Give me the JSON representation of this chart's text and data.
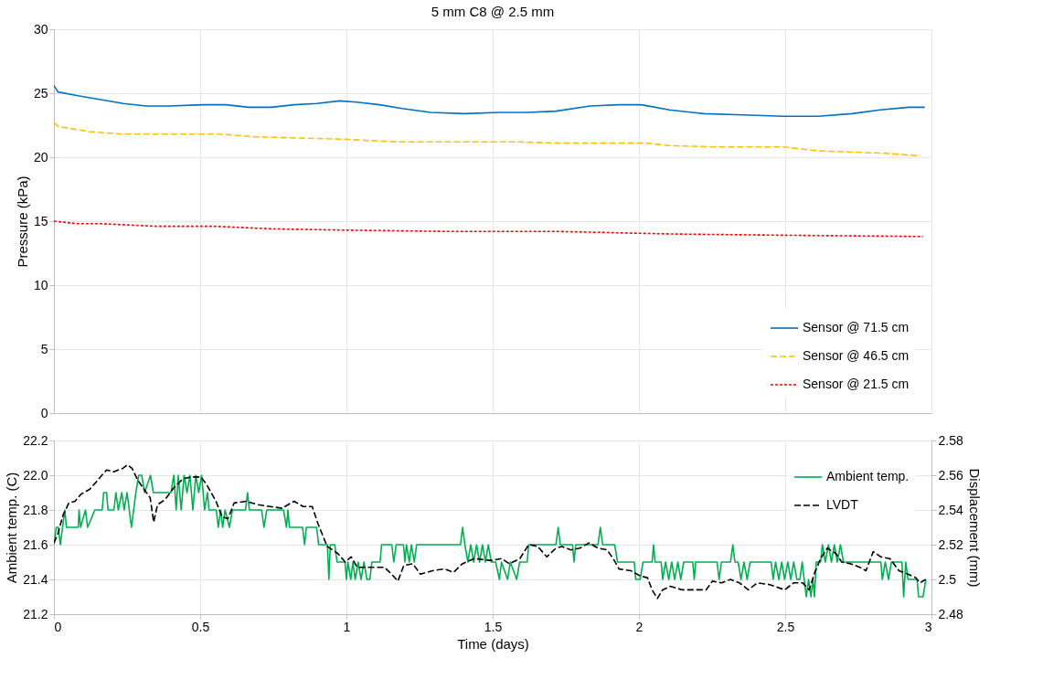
{
  "chart_data": [
    {
      "type": "line",
      "title": "5 mm C8 @ 2.5 mm",
      "ylabel": "Pressure (kPa)",
      "xlim": [
        0,
        3
      ],
      "xticks": [
        0,
        0.5,
        1,
        1.5,
        2,
        2.5,
        3
      ],
      "ylim": [
        0,
        30
      ],
      "yticks": [
        0,
        5,
        10,
        15,
        20,
        25,
        30
      ],
      "grid": true,
      "legend": "bottom right",
      "tick_labels": "y",
      "series": [
        {
          "name": "Sensor @ 71.5 cm",
          "color": "#0070c0",
          "line_style": "solid",
          "x": [
            0,
            0.014,
            0.082,
            0.16,
            0.237,
            0.315,
            0.393,
            0.51,
            0.588,
            0.665,
            0.743,
            0.821,
            0.899,
            0.977,
            1.035,
            1.113,
            1.191,
            1.288,
            1.405,
            1.521,
            1.619,
            1.716,
            1.833,
            1.93,
            2.008,
            2.105,
            2.222,
            2.358,
            2.494,
            2.611,
            2.728,
            2.825,
            2.922,
            2.977
          ],
          "values": [
            25.6,
            25.1,
            24.8,
            24.5,
            24.2,
            24.0,
            24.0,
            24.1,
            24.1,
            23.9,
            23.9,
            24.1,
            24.2,
            24.4,
            24.3,
            24.1,
            23.8,
            23.5,
            23.4,
            23.5,
            23.5,
            23.6,
            24.0,
            24.1,
            24.1,
            23.7,
            23.4,
            23.3,
            23.2,
            23.2,
            23.4,
            23.7,
            23.9,
            23.9
          ]
        },
        {
          "name": "Sensor @ 46.5 cm",
          "color": "#ffc000",
          "line_style": "dashed",
          "x": [
            0,
            0.014,
            0.121,
            0.237,
            0.393,
            0.568,
            0.685,
            0.84,
            0.996,
            1.171,
            1.424,
            1.58,
            1.716,
            2.027,
            2.105,
            2.261,
            2.494,
            2.611,
            2.844,
            2.961
          ],
          "values": [
            22.7,
            22.4,
            22.0,
            21.8,
            21.8,
            21.8,
            21.6,
            21.5,
            21.4,
            21.2,
            21.2,
            21.2,
            21.1,
            21.1,
            20.9,
            20.8,
            20.8,
            20.5,
            20.3,
            20.1
          ]
        },
        {
          "name": "Sensor @ 21.5 cm",
          "color": "#ff0000",
          "line_style": "dotted",
          "x": [
            0,
            0.082,
            0.16,
            0.354,
            0.549,
            0.743,
            0.996,
            1.327,
            1.716,
            2.105,
            2.494,
            2.971
          ],
          "values": [
            15.0,
            14.8,
            14.8,
            14.6,
            14.6,
            14.4,
            14.3,
            14.2,
            14.2,
            14.0,
            13.9,
            13.8
          ]
        }
      ]
    },
    {
      "type": "line",
      "xlabel": "Time (days)",
      "ylabel": "Ambient temp. (C)",
      "y2label": "Displacement (mm)",
      "xlim": [
        0,
        3
      ],
      "xticks": [
        0,
        0.5,
        1,
        1.5,
        2,
        2.5,
        3
      ],
      "ylim": [
        21.2,
        22.2
      ],
      "yticks": [
        21.2,
        21.4,
        21.6,
        21.8,
        {
          "value": 22,
          "label": "22.0"
        },
        22.2
      ],
      "y2lim": [
        2.48,
        2.58
      ],
      "y2ticks": [
        2.48,
        {
          "value": 2.5,
          "label": "2.5"
        },
        2.52,
        2.54,
        2.56,
        2.58
      ],
      "grid": true,
      "legend": "top right",
      "series": [
        {
          "name": "Ambient temp.",
          "color": "#00b050",
          "line_style": "solid",
          "x": [
            0,
            0.008,
            0.015,
            0.022,
            0.037,
            0.043,
            0.083,
            0.086,
            0.091,
            0.108,
            0.115,
            0.14,
            0.165,
            0.17,
            0.18,
            0.185,
            0.205,
            0.212,
            0.22,
            0.232,
            0.24,
            0.25,
            0.265,
            0.28,
            0.29,
            0.3,
            0.31,
            0.33,
            0.34,
            0.4,
            0.41,
            0.418,
            0.425,
            0.435,
            0.445,
            0.455,
            0.465,
            0.475,
            0.485,
            0.495,
            0.505,
            0.515,
            0.525,
            0.53,
            0.555,
            0.562,
            0.57,
            0.577,
            0.585,
            0.6,
            0.61,
            0.655,
            0.662,
            0.668,
            0.71,
            0.718,
            0.728,
            0.785,
            0.795,
            0.8,
            0.805,
            0.85,
            0.857,
            0.863,
            0.898,
            0.905,
            0.935,
            0.94,
            0.945,
            0.96,
            0.968,
            0.995,
            1.0,
            1.005,
            1.015,
            1.022,
            1.03,
            1.04,
            1.05,
            1.06,
            1.07,
            1.08,
            1.087,
            1.115,
            1.12,
            1.155,
            1.162,
            1.17,
            1.195,
            1.2,
            1.205,
            1.215,
            1.222,
            1.232,
            1.24,
            1.39,
            1.397,
            1.405,
            1.415,
            1.425,
            1.435,
            1.445,
            1.455,
            1.465,
            1.475,
            1.485,
            1.495,
            1.51,
            1.523,
            1.53,
            1.551,
            1.56,
            1.582,
            1.592,
            1.618,
            1.623,
            1.716,
            1.724,
            1.731,
            1.773,
            1.778,
            1.784,
            1.86,
            1.868,
            1.876,
            1.917,
            1.927,
            1.984,
            1.989,
            2.004,
            2.014,
            2.045,
            2.05,
            2.055,
            2.076,
            2.081,
            2.091,
            2.102,
            2.112,
            2.122,
            2.133,
            2.143,
            2.153,
            2.184,
            2.189,
            2.194,
            2.267,
            2.274,
            2.282,
            2.313,
            2.321,
            2.328,
            2.339,
            2.349,
            2.359,
            2.37,
            2.38,
            2.452,
            2.459,
            2.467,
            2.478,
            2.488,
            2.498,
            2.509,
            2.519,
            2.529,
            2.54,
            2.55,
            2.558,
            2.572,
            2.58,
            2.588,
            2.595,
            2.6,
            2.606,
            2.621,
            2.627,
            2.637,
            2.648,
            2.658,
            2.668,
            2.678,
            2.689,
            2.699,
            2.827,
            2.832,
            2.842,
            2.853,
            2.863,
            2.899,
            2.905,
            2.912,
            2.92,
            2.951,
            2.956,
            2.971,
            2.981
          ],
          "values": [
            21.6,
            21.7,
            21.7,
            21.6,
            21.8,
            21.7,
            21.7,
            21.8,
            21.7,
            21.8,
            21.7,
            21.8,
            21.8,
            21.9,
            21.9,
            21.8,
            21.8,
            21.9,
            21.8,
            21.9,
            21.8,
            21.9,
            21.7,
            21.9,
            22.0,
            22.0,
            21.9,
            22.0,
            21.9,
            21.9,
            22.0,
            21.8,
            22.0,
            21.8,
            22.0,
            21.9,
            22.0,
            21.8,
            22.0,
            21.9,
            22.0,
            21.8,
            21.9,
            21.8,
            21.8,
            21.7,
            21.8,
            21.7,
            21.8,
            21.7,
            21.8,
            21.8,
            21.9,
            21.8,
            21.8,
            21.7,
            21.8,
            21.8,
            21.7,
            21.8,
            21.7,
            21.7,
            21.6,
            21.7,
            21.7,
            21.6,
            21.6,
            21.4,
            21.6,
            21.6,
            21.5,
            21.5,
            21.4,
            21.5,
            21.4,
            21.5,
            21.4,
            21.5,
            21.4,
            21.5,
            21.4,
            21.4,
            21.5,
            21.5,
            21.6,
            21.6,
            21.5,
            21.6,
            21.6,
            21.5,
            21.6,
            21.5,
            21.6,
            21.5,
            21.6,
            21.6,
            21.7,
            21.6,
            21.5,
            21.6,
            21.5,
            21.6,
            21.5,
            21.6,
            21.5,
            21.6,
            21.5,
            21.5,
            21.4,
            21.5,
            21.4,
            21.5,
            21.4,
            21.5,
            21.5,
            21.6,
            21.6,
            21.7,
            21.6,
            21.6,
            21.5,
            21.6,
            21.6,
            21.7,
            21.6,
            21.6,
            21.5,
            21.5,
            21.4,
            21.4,
            21.5,
            21.5,
            21.6,
            21.5,
            21.5,
            21.4,
            21.5,
            21.4,
            21.5,
            21.4,
            21.5,
            21.4,
            21.5,
            21.5,
            21.4,
            21.5,
            21.5,
            21.4,
            21.5,
            21.5,
            21.6,
            21.5,
            21.5,
            21.4,
            21.5,
            21.4,
            21.5,
            21.5,
            21.4,
            21.5,
            21.4,
            21.5,
            21.4,
            21.5,
            21.4,
            21.5,
            21.4,
            21.4,
            21.5,
            21.3,
            21.4,
            21.3,
            21.4,
            21.3,
            21.5,
            21.5,
            21.6,
            21.5,
            21.6,
            21.5,
            21.6,
            21.5,
            21.6,
            21.5,
            21.5,
            21.4,
            21.5,
            21.4,
            21.5,
            21.5,
            21.3,
            21.5,
            21.4,
            21.4,
            21.3,
            21.3,
            21.4
          ]
        },
        {
          "name": "LVDT",
          "color": "#000000",
          "line_style": "dashed",
          "axis": "y2",
          "x": [
            0,
            0.015,
            0.031,
            0.051,
            0.072,
            0.092,
            0.123,
            0.144,
            0.164,
            0.18,
            0.205,
            0.236,
            0.251,
            0.267,
            0.287,
            0.308,
            0.329,
            0.341,
            0.354,
            0.38,
            0.411,
            0.441,
            0.472,
            0.503,
            0.524,
            0.554,
            0.575,
            0.595,
            0.616,
            0.657,
            0.698,
            0.739,
            0.78,
            0.821,
            0.852,
            0.883,
            0.903,
            0.934,
            0.97,
            0.996,
            1.016,
            1.037,
            1.088,
            1.129,
            1.155,
            1.176,
            1.196,
            1.227,
            1.253,
            1.294,
            1.335,
            1.366,
            1.396,
            1.437,
            1.489,
            1.5,
            1.531,
            1.557,
            1.593,
            1.623,
            1.654,
            1.685,
            1.716,
            1.737,
            1.767,
            1.798,
            1.829,
            1.86,
            1.891,
            1.912,
            1.932,
            1.973,
            2.004,
            2.029,
            2.045,
            2.063,
            2.081,
            2.107,
            2.148,
            2.189,
            2.23,
            2.251,
            2.282,
            2.313,
            2.344,
            2.374,
            2.405,
            2.447,
            2.498,
            2.529,
            2.56,
            2.582,
            2.601,
            2.621,
            2.644,
            2.673,
            2.693,
            2.724,
            2.755,
            2.776,
            2.801,
            2.827,
            2.858,
            2.889,
            2.92,
            2.946,
            2.961,
            2.98
          ],
          "values": [
            2.521,
            2.527,
            2.537,
            2.544,
            2.545,
            2.549,
            2.552,
            2.556,
            2.56,
            2.563,
            2.562,
            2.564,
            2.566,
            2.564,
            2.557,
            2.552,
            2.547,
            2.533,
            2.543,
            2.546,
            2.553,
            2.558,
            2.559,
            2.559,
            2.554,
            2.545,
            2.536,
            2.535,
            2.544,
            2.545,
            2.543,
            2.542,
            2.541,
            2.545,
            2.542,
            2.542,
            2.532,
            2.519,
            2.515,
            2.51,
            2.513,
            2.507,
            2.507,
            2.507,
            2.503,
            2.499,
            2.508,
            2.509,
            2.503,
            2.505,
            2.506,
            2.504,
            2.509,
            2.512,
            2.511,
            2.511,
            2.512,
            2.509,
            2.512,
            2.52,
            2.519,
            2.513,
            2.518,
            2.519,
            2.517,
            2.518,
            2.521,
            2.518,
            2.517,
            2.512,
            2.506,
            2.505,
            2.502,
            2.501,
            2.494,
            2.489,
            2.494,
            2.496,
            2.494,
            2.494,
            2.494,
            2.499,
            2.498,
            2.5,
            2.498,
            2.494,
            2.498,
            2.497,
            2.494,
            2.498,
            2.498,
            2.494,
            2.504,
            2.512,
            2.518,
            2.515,
            2.51,
            2.509,
            2.507,
            2.505,
            2.516,
            2.513,
            2.512,
            2.505,
            2.503,
            2.501,
            2.498,
            2.5
          ]
        }
      ]
    }
  ]
}
